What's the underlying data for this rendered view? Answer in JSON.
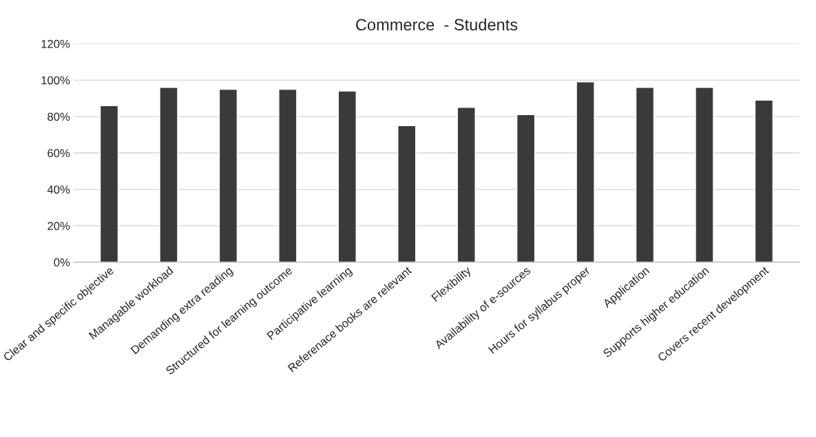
{
  "chart_data": {
    "type": "bar",
    "title": "Commerce  - Students",
    "categories": [
      "Clear and specific objective",
      "Managable workload",
      "Demanding extra reading",
      "Structured for learning outcome",
      "Participative learning",
      "Referenace books are relevant",
      "Flexibility",
      "Availability of e-sources",
      "Hours for syllabus proper",
      "Application",
      "Supports higher education",
      "Covers recent development"
    ],
    "values": [
      0.86,
      0.96,
      0.95,
      0.95,
      0.94,
      0.75,
      0.85,
      0.81,
      0.99,
      0.96,
      0.96,
      0.89
    ],
    "color": "#3a3a3a",
    "ylim": [
      0,
      1.2
    ],
    "yticks": [
      {
        "value": 0,
        "label": "0%"
      },
      {
        "value": 0.2,
        "label": "20%"
      },
      {
        "value": 0.4,
        "label": "40%"
      },
      {
        "value": 0.6,
        "label": "60%"
      },
      {
        "value": 0.8,
        "label": "80%"
      },
      {
        "value": 1.0,
        "label": "100%"
      },
      {
        "value": 1.2,
        "label": "120%"
      }
    ],
    "grid": "y"
  }
}
